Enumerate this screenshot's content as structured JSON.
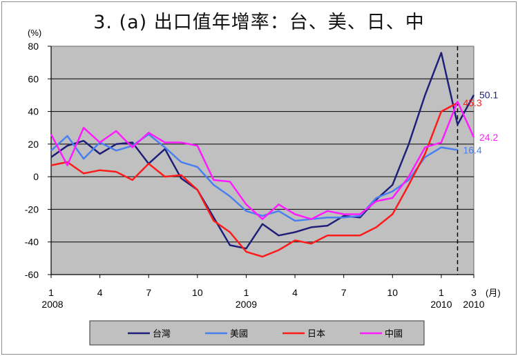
{
  "chart_data": {
    "type": "line",
    "title": "3. (a)  出口值年增率：台、美、日、中",
    "ylabel": "(%)",
    "xlabel_unit": "(月)",
    "ylim": [
      -60,
      80
    ],
    "yticks": [
      80,
      60,
      40,
      20,
      0,
      -20,
      -40,
      -60
    ],
    "xlim": [
      1,
      27
    ],
    "xticks": [
      {
        "x": 1,
        "label": "1",
        "year": "2008"
      },
      {
        "x": 4,
        "label": "4",
        "year": ""
      },
      {
        "x": 7,
        "label": "7",
        "year": ""
      },
      {
        "x": 10,
        "label": "10",
        "year": ""
      },
      {
        "x": 13,
        "label": "1",
        "year": "2009"
      },
      {
        "x": 16,
        "label": "4",
        "year": ""
      },
      {
        "x": 19,
        "label": "7",
        "year": ""
      },
      {
        "x": 22,
        "label": "10",
        "year": ""
      },
      {
        "x": 25,
        "label": "1",
        "year": "2010"
      },
      {
        "x": 27,
        "label": "3",
        "year": "2010"
      }
    ],
    "grid": true,
    "forecast_from_x": 26,
    "legend_position": "bottom",
    "series": [
      {
        "name": "台灣",
        "color": "#1f1f7a",
        "x": [
          1,
          2,
          3,
          4,
          5,
          6,
          7,
          8,
          9,
          10,
          11,
          12,
          13,
          14,
          15,
          16,
          17,
          18,
          19,
          20,
          21,
          22,
          23,
          24,
          25,
          26,
          27
        ],
        "values": [
          12,
          19,
          22,
          14,
          20,
          21,
          8,
          17,
          -1,
          -8,
          -25,
          -42,
          -44,
          -29,
          -36,
          -34,
          -31,
          -30,
          -24,
          -25,
          -14,
          -5,
          20,
          50,
          76,
          32,
          50.1
        ],
        "end_label": "50.1"
      },
      {
        "name": "美國",
        "color": "#4a7ff0",
        "x": [
          1,
          2,
          3,
          4,
          5,
          6,
          7,
          8,
          9,
          10,
          11,
          12,
          13,
          14,
          15,
          16,
          17,
          18,
          19,
          20,
          21,
          22,
          23,
          24,
          25,
          26,
          27
        ],
        "values": [
          16,
          25,
          11,
          21,
          16,
          19,
          26,
          18,
          9,
          6,
          -5,
          -12,
          -21,
          -24,
          -21,
          -27,
          -26,
          -25,
          -25,
          -24,
          -13,
          -9,
          -2,
          12,
          18,
          16.4,
          null
        ],
        "end_label": "16.4"
      },
      {
        "name": "日本",
        "color": "#ff1a1a",
        "x": [
          1,
          2,
          3,
          4,
          5,
          6,
          7,
          8,
          9,
          10,
          11,
          12,
          13,
          14,
          15,
          16,
          17,
          18,
          19,
          20,
          21,
          22,
          23,
          24,
          25,
          26,
          27
        ],
        "values": [
          7,
          9,
          2,
          4,
          3,
          -2,
          8,
          0,
          1,
          -8,
          -27,
          -34,
          -46,
          -49,
          -45,
          -39,
          -41,
          -36,
          -36,
          -36,
          -31,
          -23,
          -5,
          14,
          40,
          45.3,
          null
        ],
        "end_label": "45.3"
      },
      {
        "name": "中國",
        "color": "#ff1aff",
        "x": [
          1,
          2,
          3,
          4,
          5,
          6,
          7,
          8,
          9,
          10,
          11,
          12,
          13,
          14,
          15,
          16,
          17,
          18,
          19,
          20,
          21,
          22,
          23,
          24,
          25,
          26,
          27
        ],
        "values": [
          26,
          7,
          30,
          21,
          28,
          18,
          27,
          21,
          21,
          19,
          -2,
          -3,
          -17,
          -26,
          -17,
          -23,
          -26,
          -21,
          -23,
          -23,
          -15,
          -13,
          0,
          18,
          21,
          46,
          24.2
        ],
        "end_label": "24.2"
      }
    ]
  }
}
